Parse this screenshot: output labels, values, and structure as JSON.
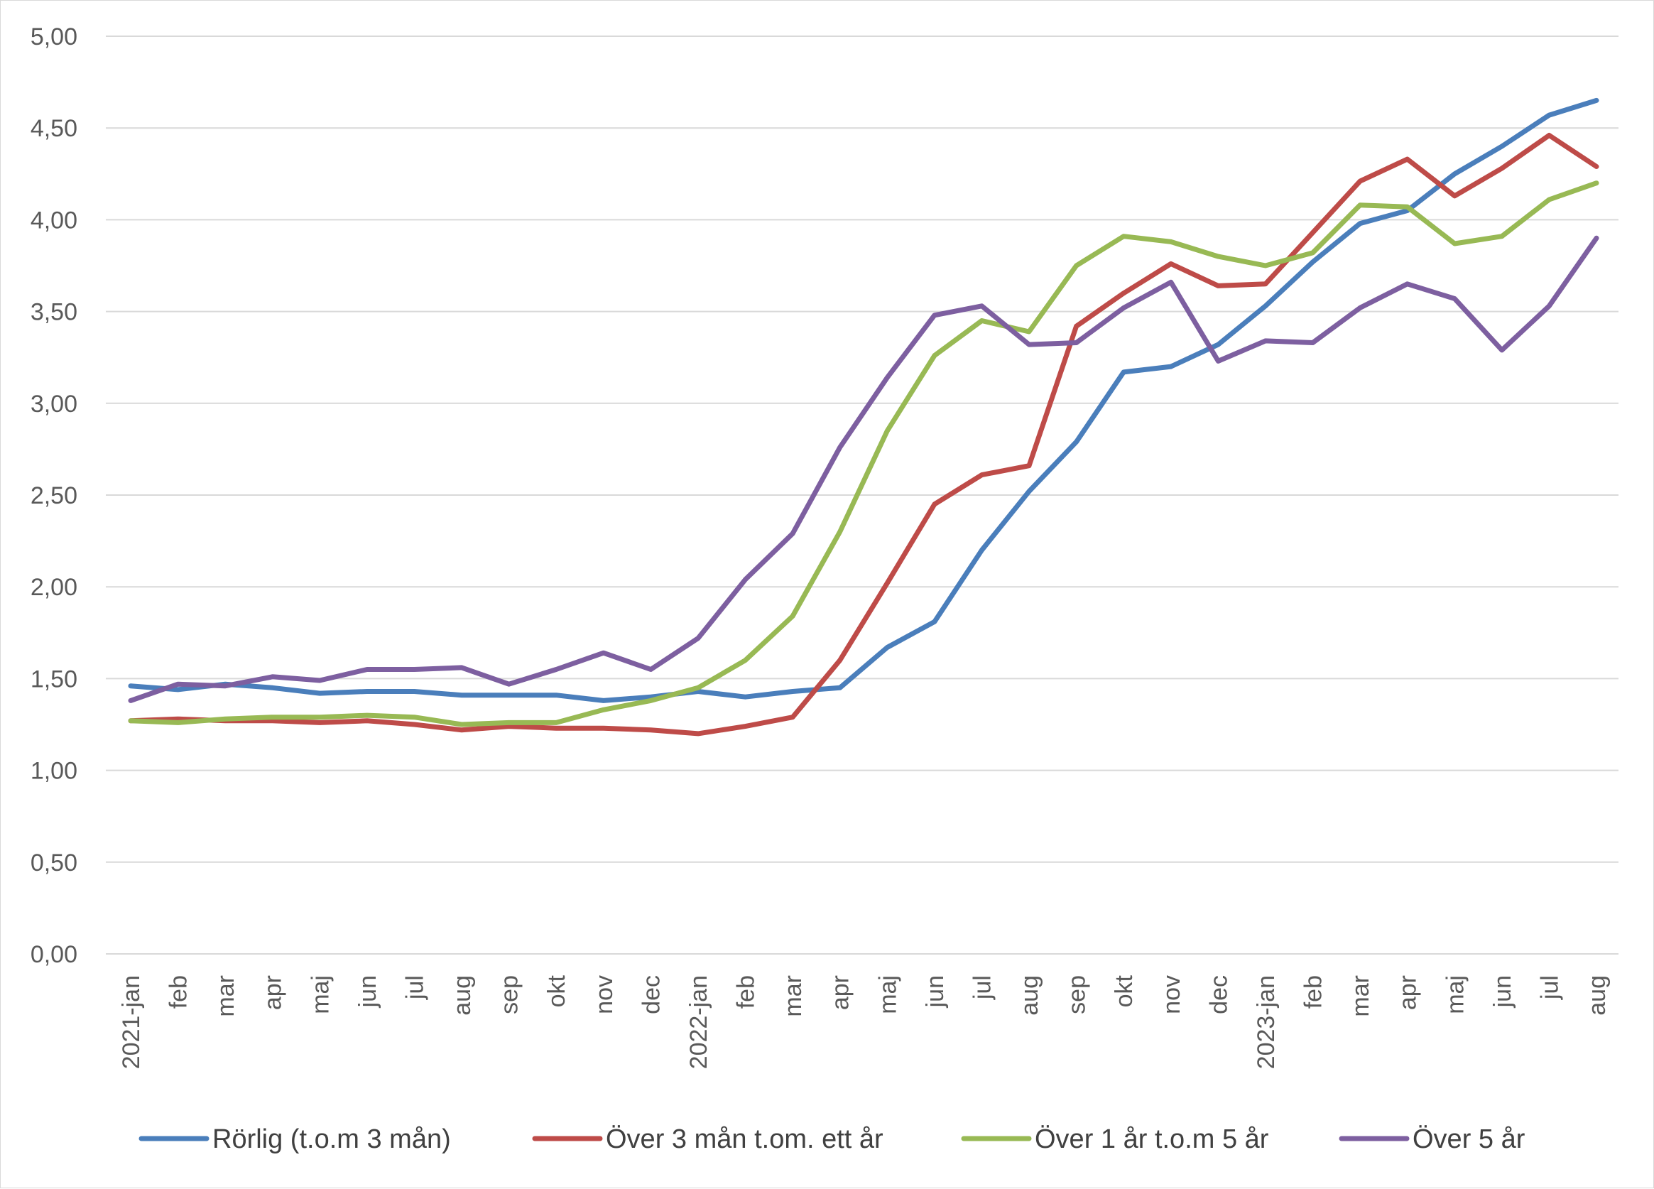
{
  "chart_data": {
    "type": "line",
    "title": "",
    "xlabel": "",
    "ylabel": "",
    "ylim": [
      0,
      5
    ],
    "yticks": [
      "0,00",
      "0,50",
      "1,00",
      "1,50",
      "2,00",
      "2,50",
      "3,00",
      "3,50",
      "4,00",
      "4,50",
      "5,00"
    ],
    "grid": "horizontal",
    "legend_position": "bottom",
    "categories": [
      "2021-jan",
      "feb",
      "mar",
      "apr",
      "maj",
      "jun",
      "jul",
      "aug",
      "sep",
      "okt",
      "nov",
      "dec",
      "2022-jan",
      "feb",
      "mar",
      "apr",
      "maj",
      "jun",
      "jul",
      "aug",
      "sep",
      "okt",
      "nov",
      "dec",
      "2023-jan",
      "feb",
      "mar",
      "apr",
      "maj",
      "jun",
      "jul",
      "aug"
    ],
    "series": [
      {
        "name": "Rörlig (t.o.m 3 mån)",
        "color": "#4a7ebb",
        "values": [
          1.46,
          1.44,
          1.47,
          1.45,
          1.42,
          1.43,
          1.43,
          1.41,
          1.41,
          1.41,
          1.38,
          1.4,
          1.43,
          1.4,
          1.43,
          1.45,
          1.67,
          1.81,
          2.2,
          2.52,
          2.79,
          3.17,
          3.2,
          3.32,
          3.53,
          3.77,
          3.98,
          4.05,
          4.25,
          4.4,
          4.57,
          4.65
        ]
      },
      {
        "name": "Över 3 mån t.om. ett år",
        "color": "#be4b48",
        "values": [
          1.27,
          1.28,
          1.27,
          1.27,
          1.26,
          1.27,
          1.25,
          1.22,
          1.24,
          1.23,
          1.23,
          1.22,
          1.2,
          1.24,
          1.29,
          1.6,
          2.02,
          2.45,
          2.61,
          2.66,
          3.42,
          3.6,
          3.76,
          3.64,
          3.65,
          3.93,
          4.21,
          4.33,
          4.13,
          4.28,
          4.46,
          4.29
        ]
      },
      {
        "name": "Över 1 år t.o.m 5 år",
        "color": "#98b954",
        "values": [
          1.27,
          1.26,
          1.28,
          1.29,
          1.29,
          1.3,
          1.29,
          1.25,
          1.26,
          1.26,
          1.33,
          1.38,
          1.45,
          1.6,
          1.84,
          2.3,
          2.85,
          3.26,
          3.45,
          3.39,
          3.75,
          3.91,
          3.88,
          3.8,
          3.75,
          3.82,
          4.08,
          4.07,
          3.87,
          3.91,
          4.11,
          4.2
        ]
      },
      {
        "name": "Över 5 år",
        "color": "#7d5fa0",
        "values": [
          1.38,
          1.47,
          1.46,
          1.51,
          1.49,
          1.55,
          1.55,
          1.56,
          1.47,
          1.55,
          1.64,
          1.55,
          1.72,
          2.04,
          2.29,
          2.76,
          3.14,
          3.48,
          3.53,
          3.32,
          3.33,
          3.52,
          3.66,
          3.23,
          3.34,
          3.33,
          3.52,
          3.65,
          3.57,
          3.29,
          3.53,
          3.9
        ]
      }
    ]
  }
}
